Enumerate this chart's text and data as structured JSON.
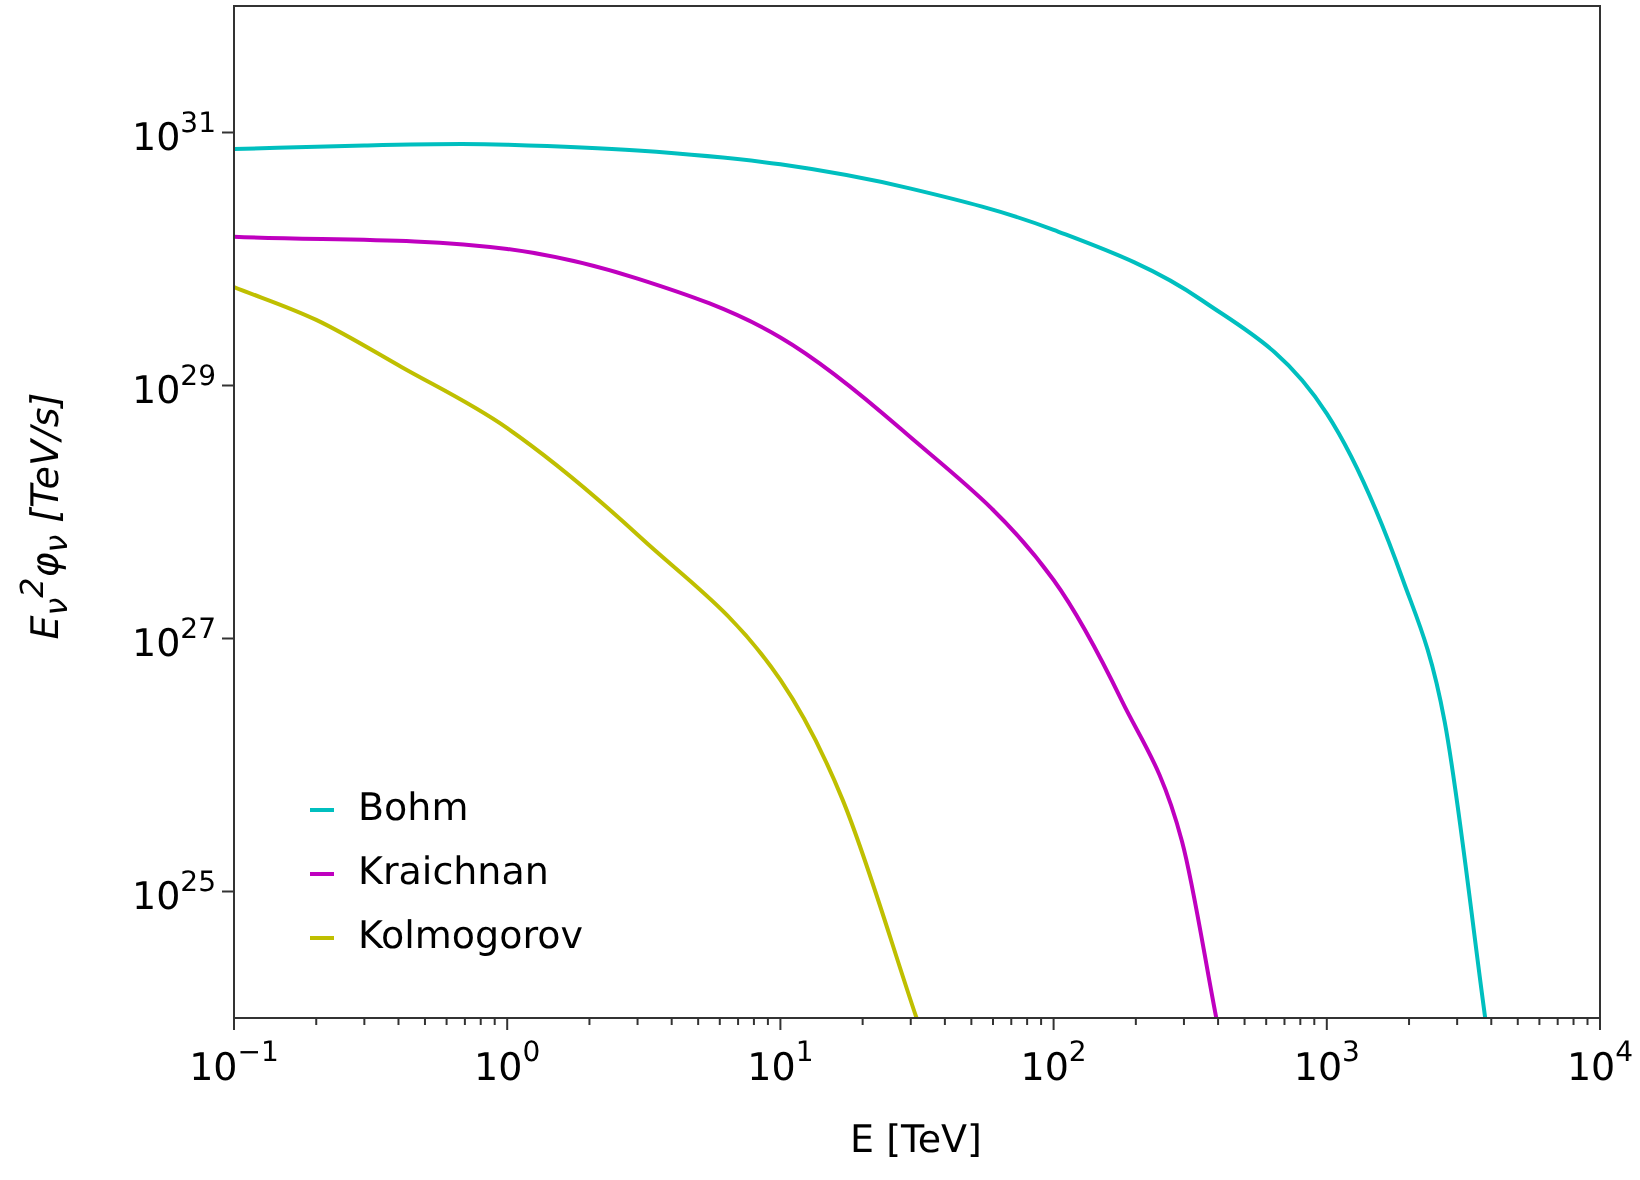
{
  "chart_data": {
    "type": "line",
    "xlabel": "E [TeV]",
    "ylabel": "E$_{ν}$$^{2}$φ$_{ν}$ [TeV/s]",
    "log": "xy",
    "legend": "bottom left",
    "marker": "none",
    "line_style": "solid",
    "grid": false,
    "xlim": [
      0.1,
      10000
    ],
    "ylim": [
      1e+24,
      1e+32
    ],
    "xticks": [
      {
        "value": 0.1,
        "label": "10$^{−1}$"
      },
      {
        "value": 0.2,
        "label": null
      },
      {
        "value": 0.3,
        "label": null
      },
      {
        "value": 0.4,
        "label": null
      },
      {
        "value": 0.5,
        "label": null
      },
      {
        "value": 0.6,
        "label": null
      },
      {
        "value": 0.7,
        "label": null
      },
      {
        "value": 0.8,
        "label": null
      },
      {
        "value": 0.9,
        "label": null
      },
      {
        "value": 1,
        "label": "10$^{0}$"
      },
      {
        "value": 2,
        "label": null
      },
      {
        "value": 3,
        "label": null
      },
      {
        "value": 4,
        "label": null
      },
      {
        "value": 5,
        "label": null
      },
      {
        "value": 6,
        "label": null
      },
      {
        "value": 7,
        "label": null
      },
      {
        "value": 8,
        "label": null
      },
      {
        "value": 9,
        "label": null
      },
      {
        "value": 10,
        "label": "10$^{1}$"
      },
      {
        "value": 20,
        "label": null
      },
      {
        "value": 30,
        "label": null
      },
      {
        "value": 40,
        "label": null
      },
      {
        "value": 50,
        "label": null
      },
      {
        "value": 60,
        "label": null
      },
      {
        "value": 70,
        "label": null
      },
      {
        "value": 80,
        "label": null
      },
      {
        "value": 90,
        "label": null
      },
      {
        "value": 100,
        "label": "10$^{2}$"
      },
      {
        "value": 200,
        "label": null
      },
      {
        "value": 300,
        "label": null
      },
      {
        "value": 400,
        "label": null
      },
      {
        "value": 500,
        "label": null
      },
      {
        "value": 600,
        "label": null
      },
      {
        "value": 700,
        "label": null
      },
      {
        "value": 800,
        "label": null
      },
      {
        "value": 900,
        "label": null
      },
      {
        "value": 1000,
        "label": "10$^{3}$"
      },
      {
        "value": 2000,
        "label": null
      },
      {
        "value": 3000,
        "label": null
      },
      {
        "value": 4000,
        "label": null
      },
      {
        "value": 5000,
        "label": null
      },
      {
        "value": 6000,
        "label": null
      },
      {
        "value": 7000,
        "label": null
      },
      {
        "value": 8000,
        "label": null
      },
      {
        "value": 9000,
        "label": null
      },
      {
        "value": 10000,
        "label": "10$^{4}$"
      }
    ],
    "yticks": [
      {
        "value": 1e+25,
        "label": "10$^{25}$"
      },
      {
        "value": 1e+27,
        "label": "10$^{27}$"
      },
      {
        "value": 1e+29,
        "label": "10$^{29}$"
      },
      {
        "value": 1e+31,
        "label": "10$^{31}$"
      }
    ],
    "series": [
      {
        "name": "Bohm",
        "color": "#00bfbf",
        "x": [
          0.1,
          0.3,
          0.68,
          1,
          3,
          10,
          30,
          100,
          350,
          1000,
          1900,
          2700,
          3800
        ],
        "values": [
          7.4e+30,
          7.9e+30,
          8.1e+30,
          8e+30,
          7.2e+30,
          5.6e+30,
          3.6e+30,
          1.7e+30,
          4.7e+29,
          6e+28,
          2.9e+27,
          2.2e+26,
          1e+24
        ]
      },
      {
        "name": "Kraichnan",
        "color": "#bf00bf",
        "x": [
          0.1,
          1,
          3,
          10,
          27.7,
          100,
          178,
          295,
          394
        ],
        "values": [
          1.5e+30,
          1.2e+30,
          7e+29,
          2.4e+29,
          4.5e+28,
          2.9e+27,
          3.2e+26,
          2.5e+25,
          1e+24
        ]
      },
      {
        "name": "Kolmogorov",
        "color": "#bfbf00",
        "x": [
          0.1,
          0.2,
          0.41,
          1,
          3.1,
          10,
          16.9,
          31.5
        ],
        "values": [
          6e+29,
          3.3e+29,
          1.4e+29,
          4.6e+28,
          6.2e+27,
          4.7e+26,
          5.3e+25,
          1e+24
        ]
      }
    ]
  }
}
